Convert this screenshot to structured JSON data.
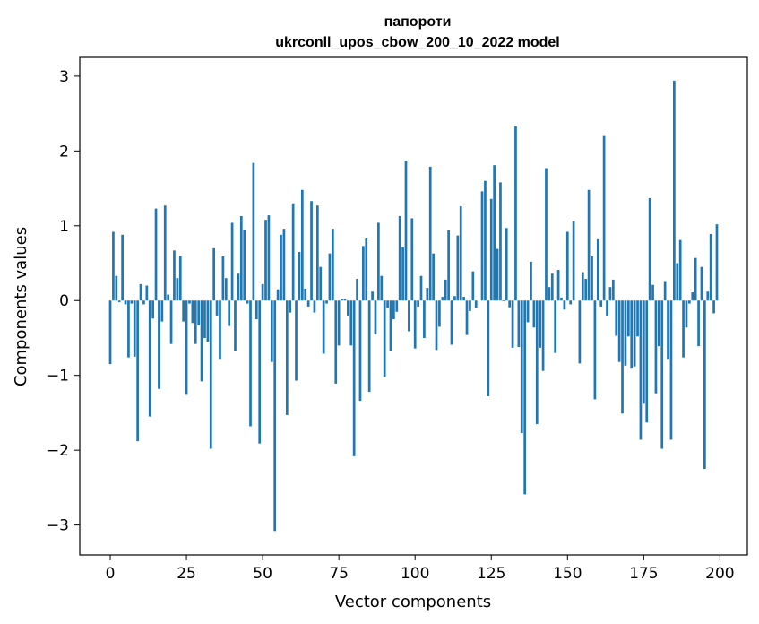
{
  "chart_data": {
    "type": "bar",
    "title_line1": "папороти",
    "title_line2": "ukrconll_upos_cbow_200_10_2022 model",
    "xlabel": "Vector components",
    "ylabel": "Components values",
    "xlim": [
      -10,
      209
    ],
    "ylim": [
      -3.4,
      3.25
    ],
    "xticks": [
      0,
      25,
      50,
      75,
      100,
      125,
      150,
      175,
      200
    ],
    "yticks": [
      -3,
      -2,
      -1,
      0,
      1,
      2,
      3
    ],
    "ytick_labels": [
      "−3",
      "−2",
      "−1",
      "0",
      "1",
      "2",
      "3"
    ],
    "bar_color": "#1f77b4",
    "grid": false,
    "x": [
      0,
      1,
      2,
      3,
      4,
      5,
      6,
      7,
      8,
      9,
      10,
      11,
      12,
      13,
      14,
      15,
      16,
      17,
      18,
      19,
      20,
      21,
      22,
      23,
      24,
      25,
      26,
      27,
      28,
      29,
      30,
      31,
      32,
      33,
      34,
      35,
      36,
      37,
      38,
      39,
      40,
      41,
      42,
      43,
      44,
      45,
      46,
      47,
      48,
      49,
      50,
      51,
      52,
      53,
      54,
      55,
      56,
      57,
      58,
      59,
      60,
      61,
      62,
      63,
      64,
      65,
      66,
      67,
      68,
      69,
      70,
      71,
      72,
      73,
      74,
      75,
      76,
      77,
      78,
      79,
      80,
      81,
      82,
      83,
      84,
      85,
      86,
      87,
      88,
      89,
      90,
      91,
      92,
      93,
      94,
      95,
      96,
      97,
      98,
      99,
      100,
      101,
      102,
      103,
      104,
      105,
      106,
      107,
      108,
      109,
      110,
      111,
      112,
      113,
      114,
      115,
      116,
      117,
      118,
      119,
      120,
      121,
      122,
      123,
      124,
      125,
      126,
      127,
      128,
      129,
      130,
      131,
      132,
      133,
      134,
      135,
      136,
      137,
      138,
      139,
      140,
      141,
      142,
      143,
      144,
      145,
      146,
      147,
      148,
      149,
      150,
      151,
      152,
      153,
      154,
      155,
      156,
      157,
      158,
      159,
      160,
      161,
      162,
      163,
      164,
      165,
      166,
      167,
      168,
      169,
      170,
      171,
      172,
      173,
      174,
      175,
      176,
      177,
      178,
      179,
      180,
      181,
      182,
      183,
      184,
      185,
      186,
      187,
      188,
      189,
      190,
      191,
      192,
      193,
      194,
      195,
      196,
      197,
      198,
      199
    ],
    "values": [
      -0.85,
      0.92,
      0.33,
      -0.02,
      0.88,
      -0.05,
      -0.76,
      -0.04,
      -0.75,
      -1.88,
      0.22,
      -0.05,
      0.2,
      -1.55,
      -0.24,
      1.23,
      -1.18,
      -0.28,
      1.27,
      0.08,
      -0.58,
      0.67,
      0.3,
      0.59,
      -0.28,
      -1.26,
      -0.04,
      -0.3,
      -0.58,
      -0.33,
      -1.08,
      -0.5,
      -0.55,
      -1.98,
      0.7,
      -0.2,
      -0.78,
      0.59,
      0.3,
      -0.34,
      1.04,
      -0.68,
      0.36,
      1.13,
      0.95,
      -0.04,
      -1.68,
      1.84,
      -0.25,
      -1.91,
      0.22,
      1.08,
      1.14,
      -0.82,
      -3.08,
      0.15,
      0.88,
      0.96,
      -1.53,
      -0.16,
      1.3,
      -1.07,
      0.65,
      1.48,
      0.16,
      -0.08,
      1.33,
      -0.16,
      1.27,
      0.45,
      -0.71,
      -0.04,
      0.63,
      0.96,
      -1.11,
      -0.6,
      0.02,
      0.02,
      -0.2,
      -0.6,
      -2.08,
      0.29,
      -1.34,
      0.73,
      0.83,
      -1.22,
      0.12,
      -0.45,
      1.04,
      0.33,
      -1.02,
      -0.1,
      -0.68,
      -0.25,
      -0.15,
      1.13,
      0.71,
      1.86,
      -0.41,
      1.1,
      -0.64,
      -0.08,
      0.33,
      -0.5,
      0.17,
      1.79,
      0.63,
      -0.66,
      -0.35,
      0.05,
      0.28,
      0.94,
      -0.59,
      0.06,
      0.87,
      1.26,
      0.05,
      -0.46,
      -0.14,
      0.39,
      -0.1,
      0.0,
      1.46,
      1.6,
      -1.28,
      1.36,
      1.81,
      0.69,
      1.58,
      -0.01,
      0.97,
      -0.09,
      -0.63,
      2.33,
      -0.62,
      -1.77,
      -2.59,
      -0.29,
      0.52,
      -0.36,
      -1.65,
      -0.63,
      -0.94,
      1.77,
      0.18,
      0.36,
      -0.7,
      0.41,
      0.04,
      -0.12,
      0.92,
      -0.05,
      1.06,
      0.0,
      -0.84,
      0.38,
      0.29,
      1.48,
      0.59,
      -1.32,
      0.82,
      -0.08,
      2.2,
      -0.2,
      0.18,
      0.28,
      -0.47,
      -0.82,
      -1.51,
      -0.87,
      -0.48,
      -0.91,
      -0.88,
      -0.48,
      -1.86,
      -1.38,
      -1.63,
      1.37,
      0.21,
      -1.24,
      -0.61,
      -1.98,
      0.26,
      -0.78,
      -1.86,
      2.94,
      0.5,
      0.81,
      -0.76,
      -0.36,
      -0.04,
      0.11,
      0.57,
      -0.61,
      0.45,
      -2.25,
      0.12,
      0.89,
      -0.17,
      1.02
    ]
  }
}
